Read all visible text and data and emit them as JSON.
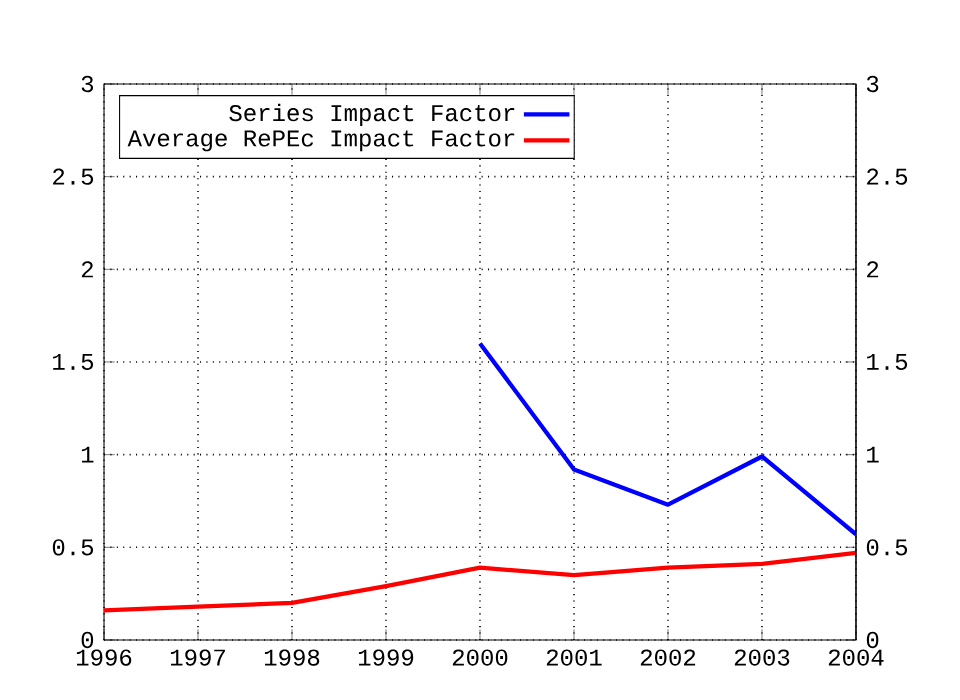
{
  "chart_data": {
    "type": "line",
    "x": [
      1996,
      1997,
      1998,
      1999,
      2000,
      2001,
      2002,
      2003,
      2004
    ],
    "series": [
      {
        "name": "Series Impact Factor",
        "color": "#0000ff",
        "values": [
          null,
          null,
          null,
          null,
          1.6,
          0.92,
          0.73,
          0.99,
          0.57
        ]
      },
      {
        "name": "Average RePEc Impact Factor",
        "color": "#ff0000",
        "values": [
          0.16,
          0.18,
          0.2,
          0.29,
          0.39,
          0.35,
          0.39,
          0.41,
          0.47
        ]
      }
    ],
    "xlim": [
      1996,
      2004
    ],
    "xticks": [
      1996,
      1997,
      1998,
      1999,
      2000,
      2001,
      2002,
      2003,
      2004
    ],
    "ylim": [
      0,
      3
    ],
    "yticks": [
      0,
      0.5,
      1,
      1.5,
      2,
      2.5,
      3
    ],
    "y2lim": [
      0,
      3
    ],
    "y2ticks": [
      0,
      0.5,
      1,
      1.5,
      2,
      2.5,
      3
    ],
    "grid": true,
    "legend": "top left",
    "marker": "none",
    "line_style": "solid"
  }
}
